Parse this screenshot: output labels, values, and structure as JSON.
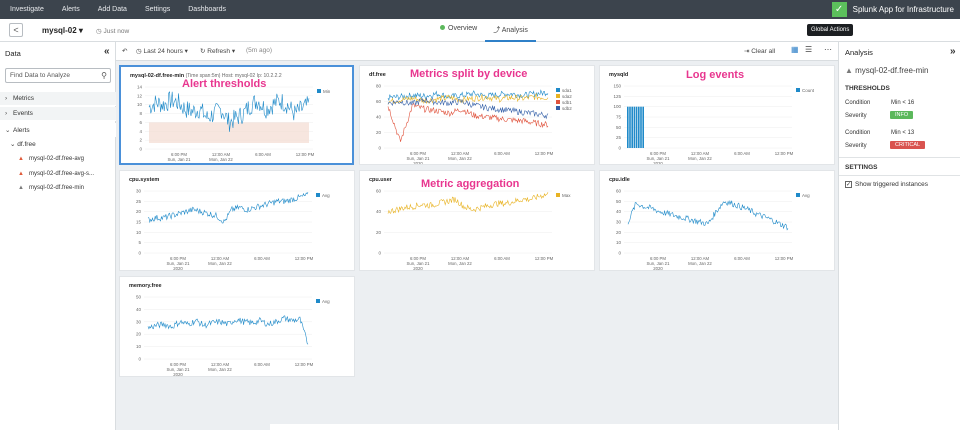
{
  "topnav": {
    "items": [
      "Investigate",
      "Alerts",
      "Add Data",
      "Settings",
      "Dashboards"
    ],
    "brand": "Splunk App for Infrastructure"
  },
  "header": {
    "back": "<",
    "entity": "mysql-02 ▾",
    "updated": "Just now",
    "tabs": [
      "Overview",
      "Analysis"
    ],
    "tooltip": "Global Actions"
  },
  "left": {
    "title": "Data",
    "search_placeholder": "Find Data to Analyze",
    "sections": [
      "Metrics",
      "Events",
      "Alerts"
    ],
    "group": "df.free",
    "alerts": [
      "mysql-02-df.free-avg",
      "mysql-02-df.free-avg-s...",
      "mysql-02-df.free-min"
    ]
  },
  "toolbar": {
    "time": "Last 24 hours",
    "refresh": "Refresh",
    "ago": "(5m ago)",
    "clear": "Clear all"
  },
  "right": {
    "title": "Analysis",
    "entity": "mysql-02-df.free-min",
    "thresholds_label": "THRESHOLDS",
    "t1_cond_key": "Condition",
    "t1_cond": "Min < 16",
    "t1_sev_key": "Severity",
    "t1_sev": "INFO",
    "t2_cond_key": "Condition",
    "t2_cond": "Min < 13",
    "t2_sev_key": "Severity",
    "t2_sev": "CRITICAL",
    "settings_label": "SETTINGS",
    "show_triggered": "Show triggered instances"
  },
  "callouts": {
    "alert": "Alert thresholds",
    "split": "Metrics split by device",
    "log": "Log events",
    "agg": "Metric aggregation"
  },
  "colors": {
    "accent": "#2f80c8",
    "info": "#5cb85c",
    "critical": "#d9534f",
    "series_blue": "#1f8ac9",
    "callout": "#e8368f"
  },
  "xticks": [
    "6:00 PM\nSun, Jan 21\n2020",
    "12:00 AM\nMon, Jan 22",
    "6:00 AM",
    "12:00 PM"
  ],
  "cards": [
    {
      "title_prefix": "mysql-02-df.free-min",
      "meta": "(Time span:5m)  Host: mysql-02  Ip: 10.2.2.2",
      "legend": [
        "Min"
      ],
      "yticks": [
        "14",
        "12",
        "10",
        "8",
        "6",
        "4",
        "2",
        "0"
      ]
    },
    {
      "title_prefix": "df.free",
      "meta": "",
      "legend": [
        "sda1",
        "sda2",
        "sdb1",
        "sdb2"
      ],
      "yticks": [
        "80",
        "60",
        "40",
        "20",
        "0"
      ]
    },
    {
      "title_prefix": "mysqld",
      "meta": "",
      "legend": [
        "Count"
      ],
      "yticks": [
        "150",
        "125",
        "100",
        "75",
        "50",
        "25",
        "0"
      ]
    },
    {
      "title_prefix": "cpu.system",
      "meta": "",
      "legend": [
        "Avg"
      ],
      "yticks": [
        "30",
        "25",
        "20",
        "15",
        "10",
        "5",
        "0"
      ]
    },
    {
      "title_prefix": "cpu.user",
      "meta": "",
      "legend": [
        "Max"
      ],
      "yticks": [
        "60",
        "40",
        "20",
        "0"
      ]
    },
    {
      "title_prefix": "cpu.idle",
      "meta": "",
      "legend": [
        "Avg"
      ],
      "yticks": [
        "60",
        "50",
        "40",
        "30",
        "20",
        "10",
        "0"
      ]
    },
    {
      "title_prefix": "memory.free",
      "meta": "",
      "legend": [
        "Avg"
      ],
      "yticks": [
        "50",
        "40",
        "30",
        "20",
        "10",
        "0"
      ]
    }
  ],
  "chart_data": [
    {
      "type": "line",
      "title": "mysql-02-df.free-min",
      "series": [
        {
          "name": "Min",
          "values": [
            9.5,
            10.5,
            10,
            11,
            10.5,
            9,
            8.5,
            9,
            7,
            8,
            9,
            6,
            7,
            8,
            10,
            11,
            9,
            10,
            11,
            10,
            8,
            9,
            10
          ]
        }
      ],
      "ylim": [
        0,
        14
      ],
      "thresholds": [
        16,
        13
      ]
    },
    {
      "type": "line",
      "title": "df.free",
      "series": [
        {
          "name": "sda1",
          "values": [
            65,
            66,
            68,
            67,
            70,
            66,
            68,
            70,
            67,
            69,
            70,
            68,
            70,
            72
          ]
        },
        {
          "name": "sda2",
          "values": [
            60,
            62,
            64,
            61,
            63,
            65,
            62,
            64,
            66,
            63,
            65,
            64,
            66,
            65
          ]
        },
        {
          "name": "sdb1",
          "values": [
            55,
            8,
            55,
            50,
            48,
            45,
            50,
            42,
            40,
            38,
            36,
            35,
            32,
            30
          ]
        },
        {
          "name": "sdb2",
          "values": [
            58,
            60,
            57,
            62,
            59,
            58,
            60,
            55,
            52,
            50,
            48,
            46,
            44,
            42
          ]
        }
      ],
      "ylim": [
        0,
        80
      ]
    },
    {
      "type": "bar",
      "title": "mysqld",
      "series": [
        {
          "name": "Count",
          "values": [
            100,
            100,
            100,
            100,
            100,
            100,
            100,
            100
          ]
        }
      ],
      "ylim": [
        0,
        150
      ]
    },
    {
      "type": "line",
      "title": "cpu.system",
      "series": [
        {
          "name": "Avg",
          "values": [
            16,
            17,
            17,
            18,
            19,
            20,
            21,
            20,
            19,
            18,
            15,
            21,
            22,
            21,
            22,
            23,
            24,
            25,
            25,
            26,
            27,
            28
          ]
        }
      ],
      "ylim": [
        0,
        30
      ]
    },
    {
      "type": "line",
      "title": "cpu.user",
      "series": [
        {
          "name": "Max",
          "values": [
            40,
            42,
            44,
            45,
            47,
            46,
            48,
            50,
            52,
            45,
            42,
            44,
            46,
            48,
            48,
            50,
            52,
            52,
            55,
            57
          ]
        }
      ],
      "ylim": [
        0,
        60
      ]
    },
    {
      "type": "line",
      "title": "cpu.idle",
      "series": [
        {
          "name": "Avg",
          "values": [
            30,
            48,
            45,
            43,
            40,
            38,
            36,
            34,
            32,
            30,
            28,
            40,
            50,
            48,
            45,
            42,
            38,
            35,
            32,
            28,
            25
          ]
        }
      ],
      "ylim": [
        0,
        60
      ]
    },
    {
      "type": "line",
      "title": "memory.free",
      "series": [
        {
          "name": "Avg",
          "values": [
            25,
            27,
            28,
            26,
            30,
            28,
            31,
            27,
            29,
            30,
            28,
            32,
            30,
            29,
            31,
            28,
            30,
            33,
            31,
            32,
            12
          ]
        }
      ],
      "ylim": [
        0,
        50
      ]
    }
  ]
}
